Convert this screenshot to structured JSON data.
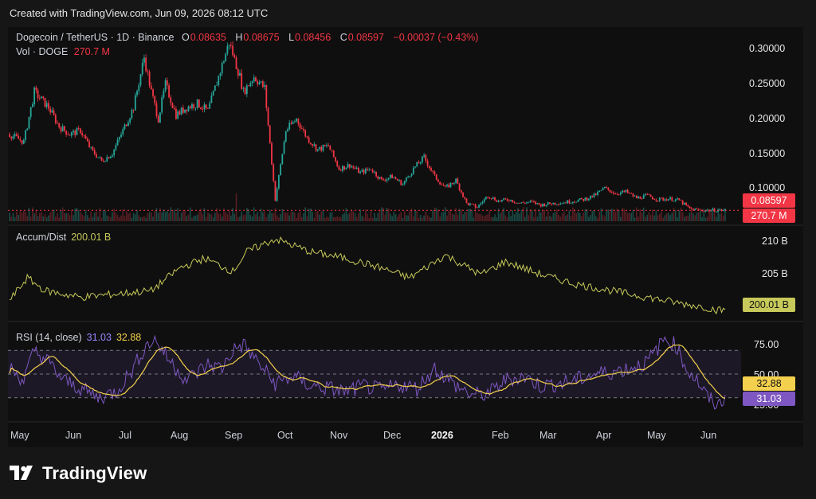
{
  "credit": "Created with TradingView.com, Jun 09, 2026 08:12 UTC",
  "brand": {
    "name": "TradingView",
    "logo_icon": "tradingview-logo-icon"
  },
  "colors": {
    "up": "#26a69a",
    "down": "#f23645",
    "ad": "#c7c95a",
    "rsi": "#7e57c2",
    "rsi_ma": "#f3d04d",
    "bg": "#0f0f0f"
  },
  "header": {
    "symbol": "Dogecoin / TetherUS · 1D · Binance",
    "o_label": "O",
    "o_value": "0.08635",
    "h_label": "H",
    "h_value": "0.08675",
    "l_label": "L",
    "l_value": "0.08456",
    "c_label": "C",
    "c_value": "0.08597",
    "change": "−0.00037 (−0.43%)",
    "vol_label": "Vol · DOGE",
    "vol_value": "270.7 M"
  },
  "price_axis": [
    "0.30000",
    "0.25000",
    "0.20000",
    "0.15000",
    "0.10000"
  ],
  "price_badge": "0.08597",
  "volume_badge": "270.7 M",
  "ad_legend": {
    "label": "Accum/Dist",
    "value": "200.01 B"
  },
  "ad_axis": [
    "210 B",
    "205 B"
  ],
  "ad_badge": "200.01 B",
  "rsi_legend": {
    "label": "RSI (14, close)",
    "value": "31.03",
    "ma_value": "32.88"
  },
  "rsi_axis": [
    "75.00",
    "50.00",
    "25.00"
  ],
  "rsi_badges": {
    "ma": "32.88",
    "rsi": "31.03"
  },
  "months": [
    "May",
    "Jun",
    "Jul",
    "Aug",
    "Sep",
    "Oct",
    "Nov",
    "Dec",
    "2026",
    "Feb",
    "Mar",
    "Apr",
    "May",
    "Jun"
  ],
  "chart_data": {
    "type": "line",
    "price_keyframes": {
      "x_day": [
        0,
        8,
        14,
        22,
        28,
        34,
        40,
        46,
        52,
        58,
        64,
        70,
        76,
        80,
        84,
        88,
        94,
        100,
        106,
        112,
        118,
        124,
        128,
        130,
        132,
        138,
        144,
        150,
        156,
        162,
        168,
        174,
        180,
        186,
        192,
        198,
        204,
        210,
        216,
        222,
        228,
        234,
        240,
        246,
        252,
        258,
        264,
        270,
        276,
        282,
        288,
        294,
        300,
        306,
        312,
        318,
        324,
        330,
        336,
        342,
        348,
        354,
        360,
        366,
        372,
        378,
        384,
        390,
        396,
        400,
        404
      ],
      "y_close": [
        0.185,
        0.175,
        0.24,
        0.22,
        0.195,
        0.185,
        0.19,
        0.165,
        0.15,
        0.16,
        0.19,
        0.22,
        0.285,
        0.24,
        0.205,
        0.25,
        0.21,
        0.22,
        0.225,
        0.215,
        0.26,
        0.305,
        0.275,
        0.26,
        0.24,
        0.26,
        0.245,
        0.1,
        0.19,
        0.205,
        0.18,
        0.165,
        0.17,
        0.14,
        0.145,
        0.135,
        0.14,
        0.125,
        0.13,
        0.12,
        0.14,
        0.155,
        0.13,
        0.115,
        0.125,
        0.095,
        0.09,
        0.105,
        0.098,
        0.1,
        0.095,
        0.097,
        0.093,
        0.095,
        0.096,
        0.098,
        0.1,
        0.105,
        0.115,
        0.108,
        0.11,
        0.102,
        0.105,
        0.1,
        0.101,
        0.099,
        0.088,
        0.086,
        0.086,
        0.086,
        0.086
      ]
    },
    "price_range": [
      0.08,
      0.31
    ],
    "ad_keyframes": {
      "x_day": [
        0,
        10,
        20,
        40,
        60,
        80,
        96,
        110,
        126,
        134,
        150,
        170,
        190,
        210,
        226,
        246,
        266,
        280,
        300,
        320,
        340,
        360,
        380,
        392,
        400
      ],
      "y": [
        201.5,
        205,
        203,
        202,
        202.5,
        203,
        206.5,
        208,
        206,
        209,
        211,
        209,
        208,
        206.5,
        205,
        208.5,
        205.5,
        207.5,
        205.5,
        204,
        203,
        202,
        201,
        200.5,
        200.01
      ]
    },
    "ad_range": [
      199,
      212
    ],
    "rsi_keyframes": {
      "x_day": [
        0,
        8,
        14,
        22,
        30,
        40,
        50,
        60,
        70,
        76,
        82,
        90,
        100,
        112,
        120,
        126,
        132,
        140,
        150,
        160,
        170,
        180,
        190,
        200,
        210,
        220,
        230,
        240,
        250,
        260,
        266,
        272,
        280,
        290,
        300,
        310,
        320,
        330,
        340,
        350,
        360,
        370,
        376,
        382,
        388,
        394,
        400,
        404
      ],
      "y": [
        55,
        45,
        70,
        60,
        45,
        38,
        30,
        35,
        55,
        72,
        80,
        62,
        45,
        58,
        55,
        70,
        75,
        60,
        42,
        48,
        40,
        38,
        35,
        40,
        36,
        41,
        38,
        55,
        42,
        33,
        32,
        35,
        45,
        48,
        40,
        42,
        45,
        50,
        52,
        55,
        60,
        80,
        75,
        55,
        45,
        30,
        23,
        31.03
      ]
    },
    "rsi_levels": [
      70,
      50,
      30
    ],
    "rsi_range": [
      15,
      85
    ],
    "ylim_price": [
      0.08,
      0.31
    ],
    "legend": "top-left",
    "grid": true
  }
}
